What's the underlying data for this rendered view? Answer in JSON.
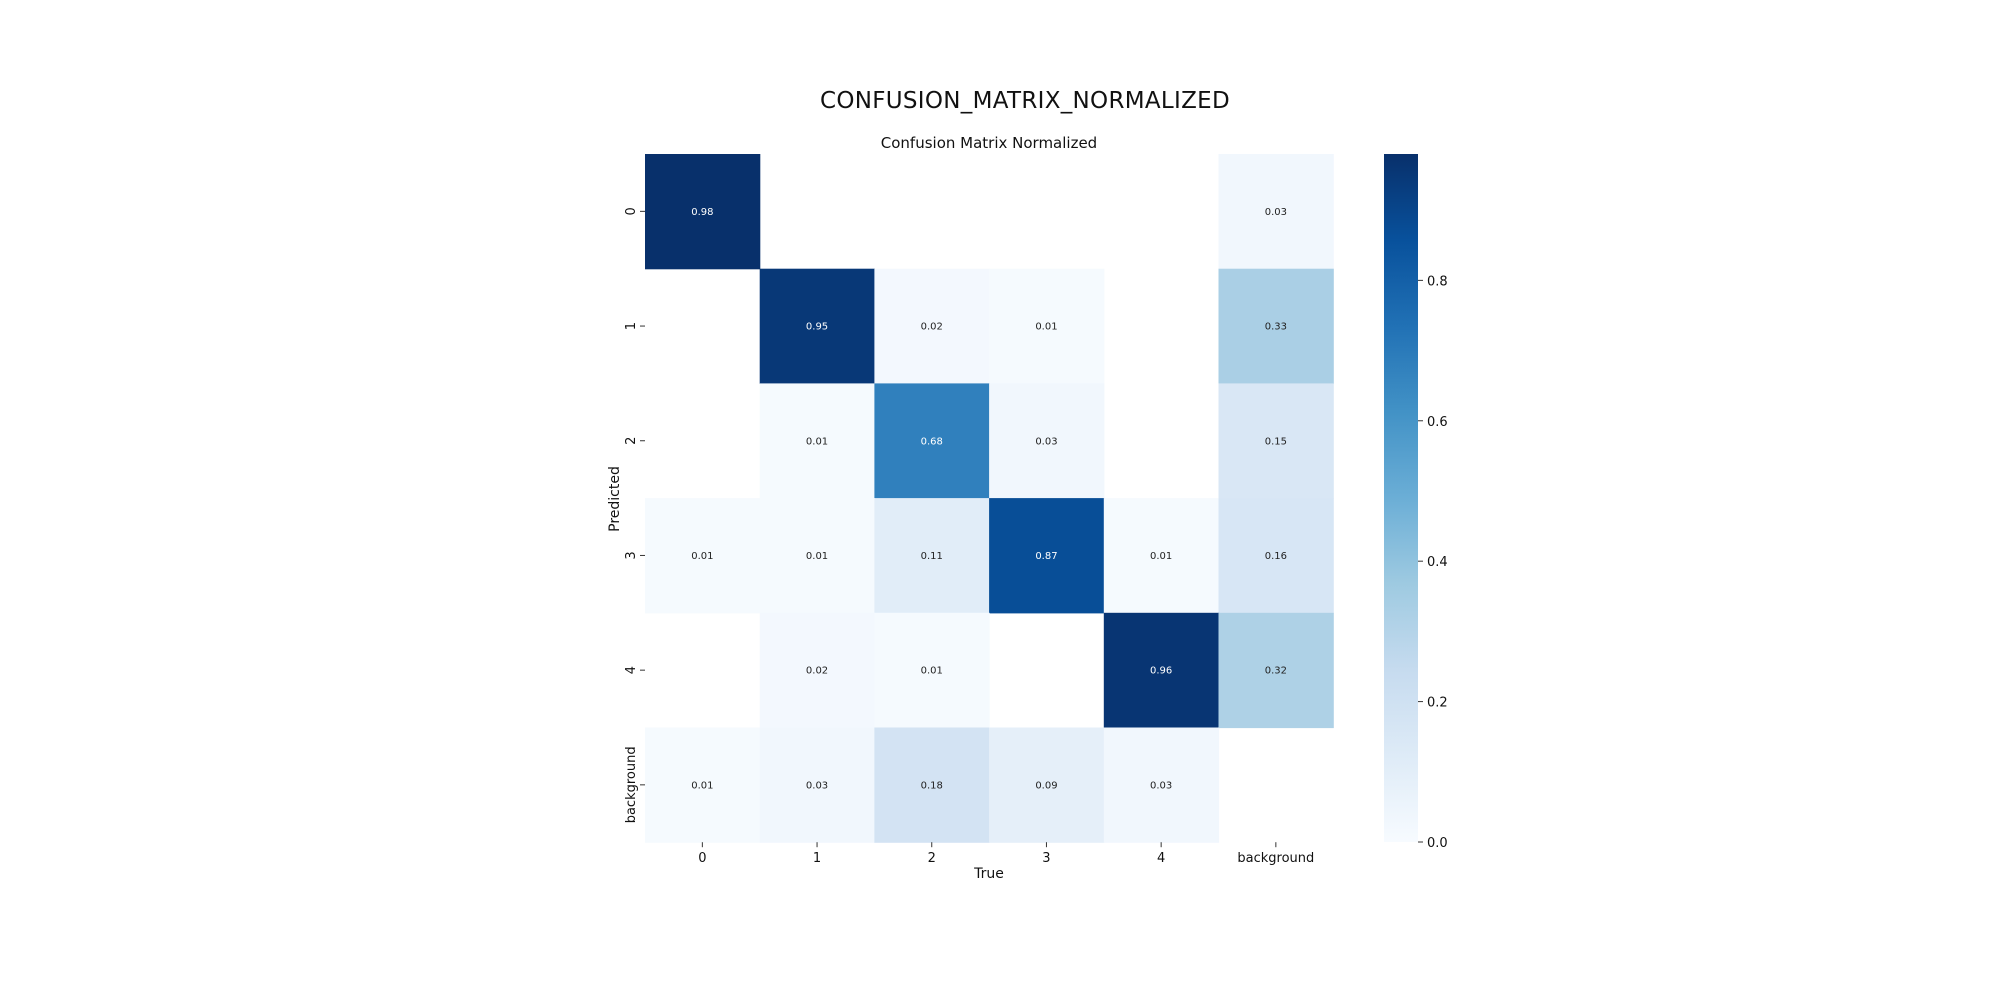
{
  "header": {
    "title": "CONFUSION_MATRIX_NORMALIZED"
  },
  "chart_data": {
    "type": "heatmap",
    "title": "Confusion Matrix Normalized",
    "xlabel": "True",
    "ylabel": "Predicted",
    "x_categories": [
      "0",
      "1",
      "2",
      "3",
      "4",
      "background"
    ],
    "y_categories": [
      "0",
      "1",
      "2",
      "3",
      "4",
      "background"
    ],
    "values": [
      [
        0.98,
        null,
        null,
        null,
        null,
        0.03
      ],
      [
        null,
        0.95,
        0.02,
        0.01,
        null,
        0.33
      ],
      [
        null,
        0.01,
        0.68,
        0.03,
        null,
        0.15
      ],
      [
        0.01,
        0.01,
        0.11,
        0.87,
        0.01,
        0.16
      ],
      [
        null,
        0.02,
        0.01,
        null,
        0.96,
        0.32
      ],
      [
        0.01,
        0.03,
        0.18,
        0.09,
        0.03,
        null
      ]
    ],
    "colormap": "Blues",
    "color_min": "#f7fbff",
    "color_max": "#08306b",
    "colorbar": {
      "range": [
        0.0,
        0.98
      ],
      "ticks": [
        0.0,
        0.2,
        0.4,
        0.6,
        0.8
      ],
      "tick_labels": [
        "0.0",
        "0.2",
        "0.4",
        "0.6",
        "0.8"
      ]
    },
    "grid": false
  }
}
